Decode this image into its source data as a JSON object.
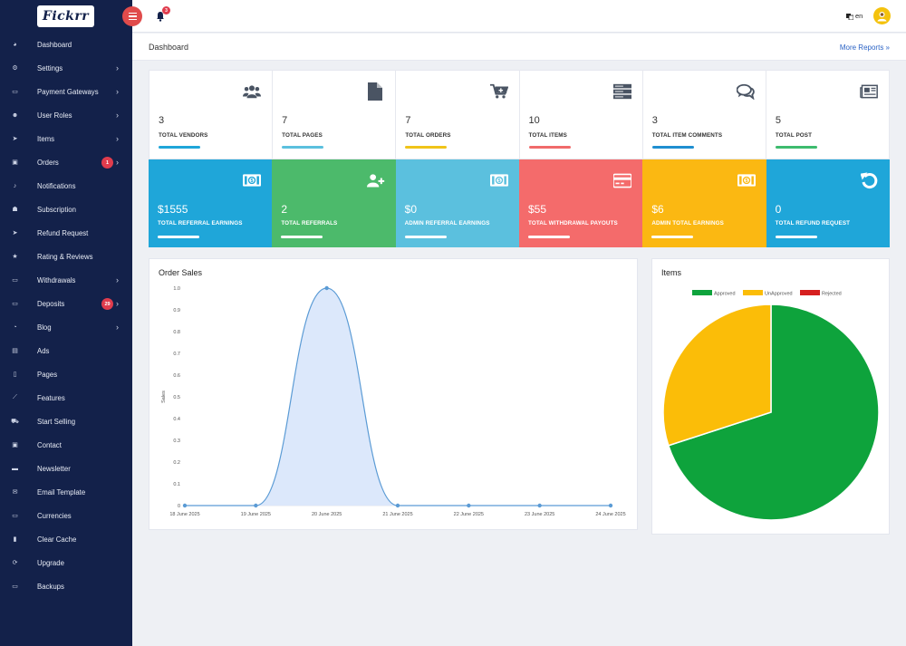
{
  "app": {
    "logo_text": "Fickrr"
  },
  "topbar": {
    "notification_count": "3",
    "language": "en"
  },
  "header": {
    "title": "Dashboard",
    "more_reports": "More Reports »"
  },
  "sidebar": {
    "items": [
      {
        "label": "Dashboard",
        "icon": "dashboard-icon",
        "glyph": "◕",
        "chevron": false
      },
      {
        "label": "Settings",
        "icon": "cogs-icon",
        "glyph": "⚙",
        "chevron": true
      },
      {
        "label": "Payment Gateways",
        "icon": "money-icon",
        "glyph": "▭",
        "chevron": true
      },
      {
        "label": "User Roles",
        "icon": "users-icon",
        "glyph": "☻",
        "chevron": true
      },
      {
        "label": "Items",
        "icon": "paper-plane-icon",
        "glyph": "➤",
        "chevron": true
      },
      {
        "label": "Orders",
        "icon": "image-icon",
        "glyph": "▣",
        "chevron": true,
        "badge": "1"
      },
      {
        "label": "Notifications",
        "icon": "bell-icon",
        "glyph": "♪",
        "chevron": false
      },
      {
        "label": "Subscription",
        "icon": "user-icon",
        "glyph": "☗",
        "chevron": false
      },
      {
        "label": "Refund Request",
        "icon": "send-icon",
        "glyph": "➤",
        "chevron": false
      },
      {
        "label": "Rating & Reviews",
        "icon": "star-icon",
        "glyph": "★",
        "chevron": false
      },
      {
        "label": "Withdrawals",
        "icon": "money-icon",
        "glyph": "▭",
        "chevron": true
      },
      {
        "label": "Deposits",
        "icon": "money-icon",
        "glyph": "▭",
        "chevron": true,
        "badge": "29"
      },
      {
        "label": "Blog",
        "icon": "comments-icon",
        "glyph": "◔",
        "chevron": true
      },
      {
        "label": "Ads",
        "icon": "file-image-icon",
        "glyph": "▤",
        "chevron": false
      },
      {
        "label": "Pages",
        "icon": "file-icon",
        "glyph": "▯",
        "chevron": false
      },
      {
        "label": "Features",
        "icon": "magic-wand-icon",
        "glyph": "⟋",
        "chevron": false
      },
      {
        "label": "Start Selling",
        "icon": "cart-icon",
        "glyph": "⛟",
        "chevron": false
      },
      {
        "label": "Contact",
        "icon": "contact-icon",
        "glyph": "▣",
        "chevron": false
      },
      {
        "label": "Newsletter",
        "icon": "newsletter-icon",
        "glyph": "▬",
        "chevron": false
      },
      {
        "label": "Email Template",
        "icon": "envelope-icon",
        "glyph": "✉",
        "chevron": false
      },
      {
        "label": "Currencies",
        "icon": "money-icon",
        "glyph": "▭",
        "chevron": false
      },
      {
        "label": "Clear Cache",
        "icon": "trash-icon",
        "glyph": "▮",
        "chevron": false
      },
      {
        "label": "Upgrade",
        "icon": "refresh-icon",
        "glyph": "⟳",
        "chevron": false
      },
      {
        "label": "Backups",
        "icon": "hdd-icon",
        "glyph": "▭",
        "chevron": false
      }
    ]
  },
  "stats_top": [
    {
      "value": "3",
      "label": "TOTAL VENDORS",
      "icon": "users-icon",
      "bar_color": "#1fa6d9"
    },
    {
      "value": "7",
      "label": "TOTAL PAGES",
      "icon": "file-icon",
      "bar_color": "#5bc0de"
    },
    {
      "value": "7",
      "label": "TOTAL ORDERS",
      "icon": "cart-plus-icon",
      "bar_color": "#f0c419"
    },
    {
      "value": "10",
      "label": "TOTAL ITEMS",
      "icon": "server-icon",
      "bar_color": "#f06b6b"
    },
    {
      "value": "3",
      "label": "TOTAL ITEM COMMENTS",
      "icon": "comments-icon",
      "bar_color": "#1f8fd0"
    },
    {
      "value": "5",
      "label": "TOTAL POST",
      "icon": "newspaper-icon",
      "bar_color": "#3dbb6e"
    }
  ],
  "stats_bottom": [
    {
      "value": "$1555",
      "label": "TOTAL REFERRAL EARNINGS",
      "icon": "money-icon",
      "bg": "#1fa6d9"
    },
    {
      "value": "2",
      "label": "TOTAL REFERRALS",
      "icon": "user-plus-icon",
      "bg": "#4cba6b"
    },
    {
      "value": "$0",
      "label": "ADMIN REFERRAL EARNINGS",
      "icon": "money-icon",
      "bg": "#5bc0de"
    },
    {
      "value": "$55",
      "label": "TOTAL WITHDRAWAL PAYOUTS",
      "icon": "credit-card-icon",
      "bg": "#f46b6b"
    },
    {
      "value": "$6",
      "label": "ADMIN TOTAL EARNINGS",
      "icon": "money-icon",
      "bg": "#fbb812"
    },
    {
      "value": "0",
      "label": "TOTAL REFUND REQUEST",
      "icon": "undo-icon",
      "bg": "#1fa6d9"
    }
  ],
  "order_sales": {
    "title": "Order Sales",
    "chart_data": {
      "type": "area",
      "x": [
        "18 June 2025",
        "19 June 2025",
        "20 June 2025",
        "21 June 2025",
        "22 June 2025",
        "23 June 2025",
        "24 June 2025"
      ],
      "series": [
        {
          "values": [
            0,
            0,
            1,
            0,
            0,
            0,
            0
          ]
        }
      ],
      "ylabel": "Sales",
      "ylim": [
        0,
        1
      ],
      "yticks": [
        "0",
        "0.1",
        "0.2",
        "0.3",
        "0.4",
        "0.5",
        "0.6",
        "0.7",
        "0.8",
        "0.9",
        "1.0"
      ],
      "line_color": "#5b9bd5",
      "fill_color": "#dce8fb"
    }
  },
  "items_chart": {
    "title": "Items",
    "chart_data": {
      "type": "pie",
      "categories": [
        "Approved",
        "UnApproved",
        "Rejected"
      ],
      "values": [
        7,
        3,
        0
      ],
      "colors": [
        "#0ea33c",
        "#fbbd08",
        "#d61f1f"
      ],
      "legend": "top"
    }
  }
}
